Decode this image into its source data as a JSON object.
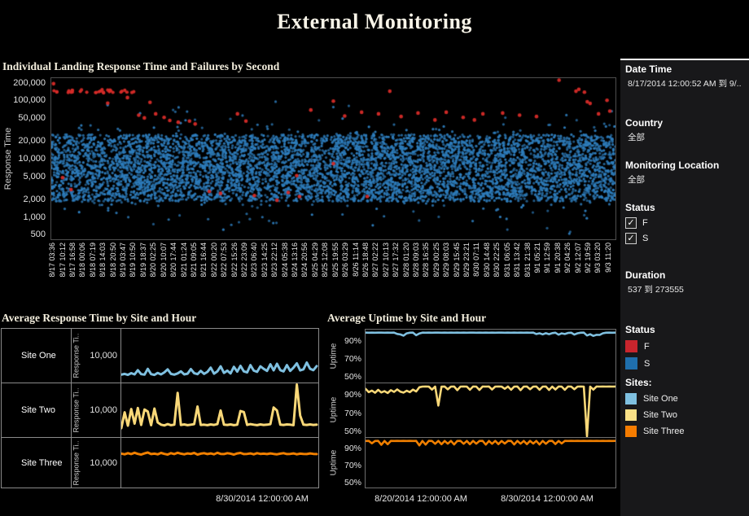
{
  "page": {
    "title": "External Monitoring"
  },
  "chart_data": [
    {
      "type": "scatter",
      "title": "Individual Landing Response Time  and Failures by Second",
      "ylabel": "Response Time",
      "y_scale": "log",
      "y_domain": [
        400,
        250000
      ],
      "y_ticks": [
        {
          "label": "200,000",
          "value": 200000
        },
        {
          "label": "100,000",
          "value": 100000
        },
        {
          "label": "50,000",
          "value": 50000
        },
        {
          "label": "20,000",
          "value": 20000
        },
        {
          "label": "10,000",
          "value": 10000
        },
        {
          "label": "5,000",
          "value": 5000
        },
        {
          "label": "2,000",
          "value": 2000
        },
        {
          "label": "1,000",
          "value": 1000
        },
        {
          "label": "500",
          "value": 500
        }
      ],
      "x_tick_labels": [
        "8/17 03:36",
        "8/17 10:12",
        "8/17 16:58",
        "8/18 00:06",
        "8/18 07:19",
        "8/18 14:03",
        "8/18 20:50",
        "8/19 03:47",
        "8/19 10:50",
        "8/19 18:37",
        "8/20 02:25",
        "8/20 10:07",
        "8/20 17:44",
        "8/21 01:24",
        "8/21 09:05",
        "8/21 16:44",
        "8/22 00:20",
        "8/22 07:53",
        "8/22 15:26",
        "8/22 23:09",
        "8/23 06:40",
        "8/23 14:25",
        "8/23 22:12",
        "8/24 05:38",
        "8/24 13:16",
        "8/24 20:56",
        "8/25 04:29",
        "8/25 12:08",
        "8/25 19:55",
        "8/26 03:29",
        "8/26 11:14",
        "8/26 18:48",
        "8/27 02:22",
        "8/27 10:13",
        "8/27 17:32",
        "8/28 01:20",
        "8/28 09:03",
        "8/28 16:35",
        "8/29 00:25",
        "8/29 08:03",
        "8/29 15:45",
        "8/29 23:21",
        "8/30 07:11",
        "8/30 14:48",
        "8/30 22:25",
        "8/31 06:05",
        "8/31 13:42",
        "8/31 21:38",
        "9/1 05:21",
        "9/1 12:59",
        "9/1 20:38",
        "9/2 04:26",
        "9/2 12:07",
        "9/2 19:59",
        "9/3 03:20",
        "9/3 11:20"
      ],
      "series": [
        {
          "name": "S",
          "color": "#2e7dbc",
          "components": [
            {
              "dist": "loguniform",
              "count": 5500,
              "log_min": 3.26,
              "log_max": 4.42
            },
            {
              "dist": "lognormal",
              "count": 800,
              "log_mean": 3.84,
              "log_sd": 0.42
            }
          ]
        },
        {
          "name": "F",
          "color": "#d62b28",
          "streak": {
            "count": 30,
            "x_min": 0.004,
            "x_max": 0.148,
            "v_min": 138000,
            "v_max": 158000
          },
          "points": [
            [
              0.004,
              200000
            ],
            [
              0.02,
              4700
            ],
            [
              0.035,
              2900
            ],
            [
              0.1,
              92000
            ],
            [
              0.135,
              115000
            ],
            [
              0.155,
              57000
            ],
            [
              0.165,
              51000
            ],
            [
              0.175,
              95000
            ],
            [
              0.185,
              60000
            ],
            [
              0.2,
              52000
            ],
            [
              0.21,
              46000
            ],
            [
              0.225,
              43000
            ],
            [
              0.245,
              45000
            ],
            [
              0.255,
              40000
            ],
            [
              0.28,
              2700
            ],
            [
              0.3,
              2500
            ],
            [
              0.33,
              60000
            ],
            [
              0.345,
              45000
            ],
            [
              0.36,
              2300
            ],
            [
              0.4,
              1900
            ],
            [
              0.42,
              2600
            ],
            [
              0.435,
              5100
            ],
            [
              0.44,
              2200
            ],
            [
              0.46,
              70000
            ],
            [
              0.5,
              100000
            ],
            [
              0.5,
              8200
            ],
            [
              0.52,
              55000
            ],
            [
              0.55,
              64000
            ],
            [
              0.56,
              2200
            ],
            [
              0.58,
              60000
            ],
            [
              0.6,
              148000
            ],
            [
              0.62,
              54000
            ],
            [
              0.65,
              62000
            ],
            [
              0.68,
              47000
            ],
            [
              0.7,
              64000
            ],
            [
              0.73,
              52000
            ],
            [
              0.75,
              47000
            ],
            [
              0.765,
              60000
            ],
            [
              0.8,
              62000
            ],
            [
              0.83,
              57000
            ],
            [
              0.86,
              54000
            ],
            [
              0.9,
              230000
            ],
            [
              0.93,
              148000
            ],
            [
              0.935,
              160000
            ],
            [
              0.945,
              143000
            ],
            [
              0.95,
              97000
            ],
            [
              0.955,
              91000
            ],
            [
              0.97,
              60000
            ],
            [
              0.985,
              103000
            ],
            [
              0.99,
              67000
            ]
          ]
        }
      ]
    },
    {
      "type": "line",
      "title": "Average Response Time by Site and Hour",
      "value_axis_label": "Response Ti..",
      "y_tick_label": "10,000",
      "y_max": 21000,
      "x_axis_label": "8/30/2014 12:00:00 AM",
      "rows": [
        {
          "label": "Site One",
          "color": "#7fc0e0",
          "values": [
            2800,
            3100,
            2700,
            3400,
            2900,
            4600,
            3000,
            2800,
            5100,
            3000,
            2700,
            3500,
            2900,
            3700,
            4900,
            3100,
            2800,
            3300,
            4100,
            2900,
            3200,
            5000,
            3400,
            3000,
            4300,
            3100,
            3900,
            5600,
            3200,
            4100,
            6100,
            3500,
            4400,
            3300,
            5900,
            4000,
            6300,
            4100,
            3700,
            6600,
            4400,
            3900,
            6100,
            5100,
            4300,
            6900,
            4500,
            7100,
            4600,
            4100,
            6600,
            4300,
            5600,
            7300,
            4500,
            4900,
            7600,
            5100,
            4600,
            6200
          ]
        },
        {
          "label": "Site Two",
          "color": "#f9d878",
          "values": [
            3200,
            9500,
            4200,
            10800,
            5000,
            11200,
            4500,
            10600,
            9800,
            4400,
            11000,
            5500,
            4600,
            4300,
            4800,
            4400,
            4600,
            17200,
            4500,
            4700,
            4400,
            4600,
            4800,
            11800,
            4500,
            4600,
            4400,
            4700,
            4500,
            4800,
            10200,
            4600,
            4500,
            4700,
            4400,
            4600,
            10000,
            9600,
            4500,
            4800,
            4600,
            4400,
            4700,
            4500,
            4600,
            4800,
            11400,
            10200,
            4600,
            4500,
            4700,
            4600,
            4400,
            20500,
            8200,
            4600,
            4500,
            4700,
            4500,
            4600
          ]
        },
        {
          "label": "Site Three",
          "color": "#f07f00",
          "values": [
            14100,
            13800,
            14300,
            13900,
            14500,
            14000,
            13700,
            14200,
            14600,
            13900,
            14100,
            13800,
            14400,
            14000,
            13700,
            14300,
            13900,
            14500,
            14100,
            13800,
            14200,
            14000,
            14400,
            13700,
            14100,
            14300,
            13900,
            14200,
            13800,
            14500,
            14000,
            13900,
            14300,
            14100,
            13700,
            14200,
            14400,
            13900,
            14000,
            14200,
            13800,
            14300,
            14000,
            14100,
            13900,
            14200,
            14000,
            13800,
            14100,
            14300,
            13900,
            14000,
            14200,
            13800,
            14100,
            14000,
            13900,
            14200,
            14000,
            13900
          ]
        }
      ]
    },
    {
      "type": "line",
      "title": "Average Uptime by Site and Hour",
      "ylabel": "Uptime",
      "y_tick_labels": [
        "90%",
        "70%",
        "50%"
      ],
      "y_tick_values": [
        90,
        70,
        50
      ],
      "y_domain": [
        45,
        103
      ],
      "x_axis_labels": [
        "8/20/2014 12:00:00 AM",
        "8/30/2014 12:00:00 AM"
      ],
      "rows": [
        {
          "label": "Site One",
          "color": "#7fc0e0",
          "values": [
            99.7,
            99.6,
            99.7,
            99.6,
            99.7,
            99.7,
            99.6,
            99.7,
            99.6,
            99.7,
            98.3,
            97.7,
            96.4,
            98.9,
            99.6,
            99.7,
            96.8,
            98.8,
            99.7,
            99.6,
            99.7,
            99.6,
            99.7,
            99.7,
            99.6,
            99.7,
            99.6,
            99.7,
            99.6,
            99.7,
            99.6,
            99.7,
            99.6,
            99.7,
            99.7,
            99.6,
            99.7,
            99.6,
            99.7,
            99.6,
            99.7,
            99.6,
            99.7,
            99.7,
            99.6,
            99.7,
            99.6,
            99.7,
            99.6,
            99.7,
            99.6,
            99.7,
            99.6,
            99.7,
            98.2,
            99.0,
            97.8,
            99.1,
            98.0,
            99.2,
            99.6,
            97.5,
            98.9,
            98.2,
            99.3,
            99.6,
            97.6,
            99.0,
            99.6,
            99.7,
            96.6,
            97.9,
            96.1,
            97.3,
            97.2,
            99.0,
            99.6,
            99.7,
            99.6,
            99.7
          ]
        },
        {
          "label": "Site Two",
          "color": "#f9d878",
          "values": [
            97.0,
            93.5,
            95.2,
            92.8,
            96.0,
            93.2,
            94.6,
            92.5,
            95.6,
            93.8,
            96.4,
            94.0,
            93.0,
            95.0,
            93.5,
            96.2,
            94.2,
            98.8,
            99.5,
            99.6,
            99.5,
            96.2,
            99.5,
            79.0,
            99.4,
            99.6,
            96.5,
            99.5,
            99.6,
            95.6,
            99.5,
            99.6,
            99.5,
            96.1,
            99.6,
            99.5,
            95.9,
            99.6,
            99.5,
            99.6,
            96.3,
            99.5,
            99.6,
            99.5,
            97.1,
            99.6,
            96.1,
            99.5,
            99.6,
            95.6,
            99.5,
            99.6,
            96.6,
            99.5,
            99.6,
            96.1,
            99.5,
            99.6,
            95.9,
            99.5,
            96.3,
            99.6,
            99.5,
            96.1,
            99.6,
            99.5,
            96.6,
            99.5,
            99.6,
            99.5,
            40.0,
            99.5,
            96.2,
            99.6,
            99.5,
            99.6,
            99.5,
            99.6,
            99.5,
            99.6
          ]
        },
        {
          "label": "Site Three",
          "color": "#f07f00",
          "values": [
            99.4,
            99.5,
            96.6,
            99.4,
            99.5,
            94.9,
            99.4,
            95.6,
            99.5,
            99.4,
            99.5,
            99.4,
            99.5,
            99.4,
            99.5,
            99.4,
            99.5,
            94.3,
            99.4,
            95.1,
            99.5,
            99.4,
            96.1,
            99.5,
            95.6,
            99.4,
            96.2,
            99.5,
            95.3,
            99.4,
            99.5,
            96.1,
            99.4,
            95.6,
            99.5,
            96.2,
            99.4,
            99.5,
            95.1,
            99.4,
            96.1,
            99.5,
            95.7,
            99.4,
            96.3,
            99.5,
            99.4,
            95.3,
            99.5,
            96.2,
            99.4,
            95.7,
            99.5,
            96.3,
            99.4,
            95.2,
            99.5,
            96.1,
            99.4,
            99.5,
            95.8,
            99.4,
            96.4,
            99.5,
            99.4,
            99.5,
            99.4,
            99.5,
            99.4,
            99.5,
            99.4,
            99.5,
            99.4,
            99.5,
            99.4,
            99.5,
            99.4,
            99.5,
            99.4,
            99.5
          ]
        }
      ]
    }
  ],
  "sidebar": {
    "filters": [
      {
        "label": "Date Time",
        "value": "8/17/2014 12:00:52 AM 到 9/.."
      },
      {
        "label": "Country",
        "value": "全部"
      },
      {
        "label": "Monitoring Location",
        "value": "全部"
      }
    ],
    "status_filter": {
      "label": "Status",
      "options": [
        {
          "label": "F",
          "checked": true,
          "check_glyph": "✓"
        },
        {
          "label": "S",
          "checked": true,
          "check_glyph": "✓"
        }
      ]
    },
    "duration": {
      "label": "Duration",
      "value": "537 到 273555"
    },
    "status_legend": {
      "label": "Status",
      "items": [
        {
          "label": "F",
          "color": "#c9252d"
        },
        {
          "label": "S",
          "color": "#1f6fad"
        }
      ]
    },
    "sites_legend": {
      "label": "Sites:",
      "items": [
        {
          "label": "Site One",
          "color": "#7fc0e0"
        },
        {
          "label": "Site Two",
          "color": "#fae187"
        },
        {
          "label": "Site Three",
          "color": "#f57c00"
        }
      ]
    }
  }
}
